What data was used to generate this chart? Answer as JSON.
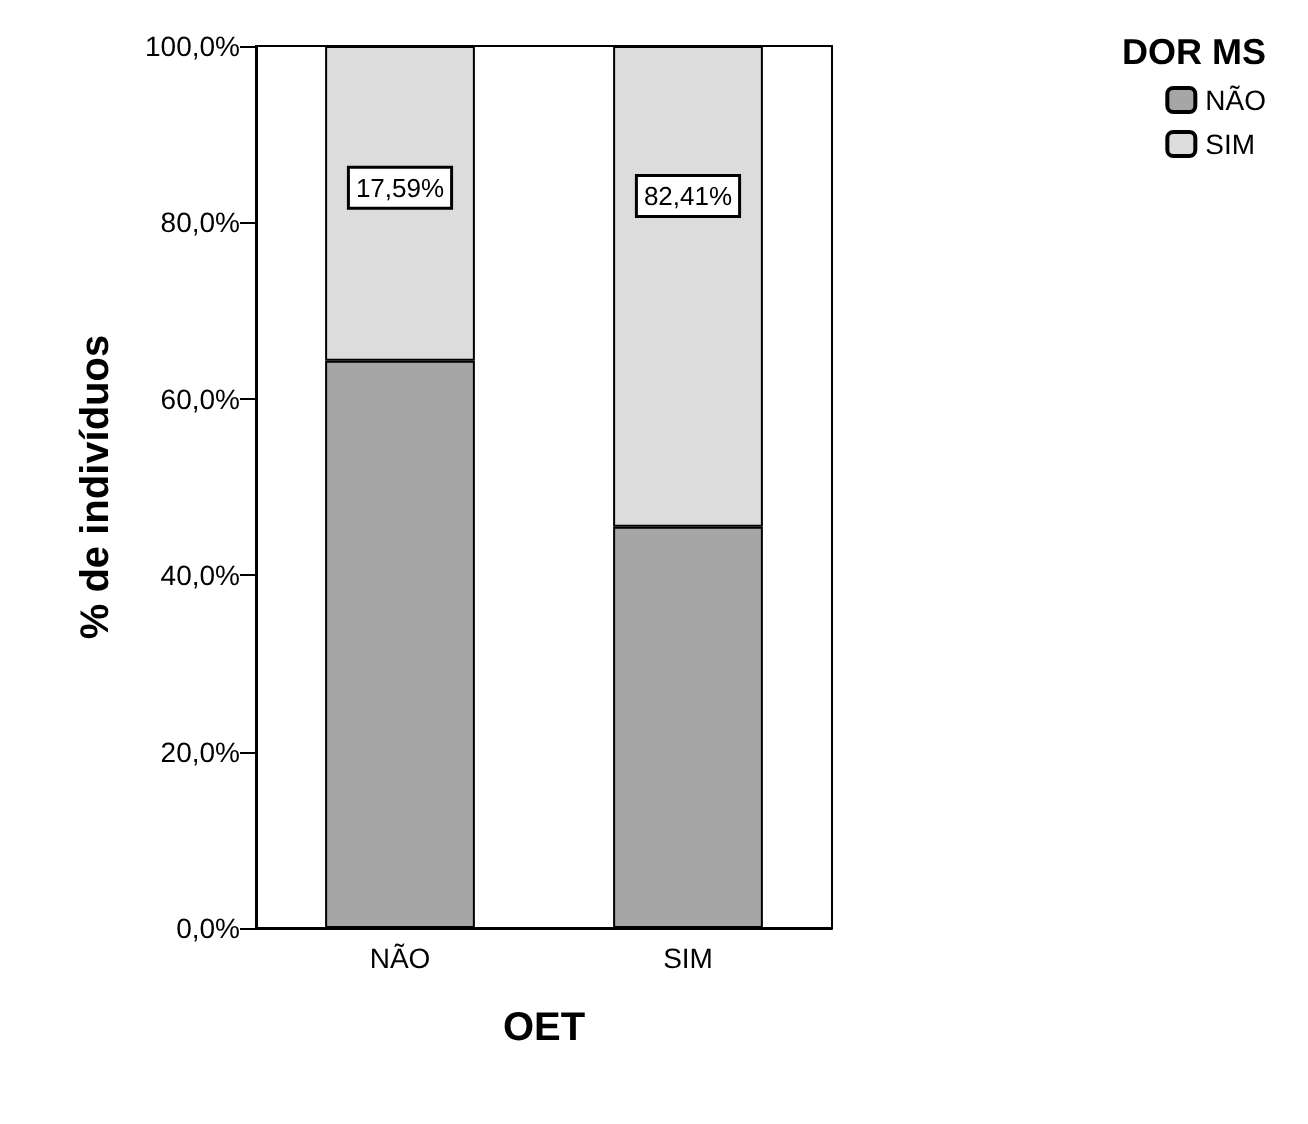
{
  "chart_data": {
    "type": "bar",
    "stacked": true,
    "xlabel": "OET",
    "ylabel": "% de indivíduos",
    "legend_title": "DOR MS",
    "legend": "top right",
    "grid": false,
    "categories": [
      "NÃO",
      "SIM"
    ],
    "series": [
      {
        "name": "NÃO",
        "color": "#a6a6a6",
        "values": [
          64.3,
          45.5
        ]
      },
      {
        "name": "SIM",
        "color": "#dcdcdc",
        "values": [
          35.7,
          54.5
        ]
      }
    ],
    "annotations": [
      "17,59%",
      "82,41%"
    ],
    "ylim": [
      0,
      100
    ],
    "yticks": [
      {
        "value": 0,
        "label": "0,0%"
      },
      {
        "value": 20,
        "label": "20,0%"
      },
      {
        "value": 40,
        "label": "40,0%"
      },
      {
        "value": 60,
        "label": "60,0%"
      },
      {
        "value": 80,
        "label": "80,0%"
      },
      {
        "value": 100,
        "label": "100,0%"
      }
    ]
  }
}
